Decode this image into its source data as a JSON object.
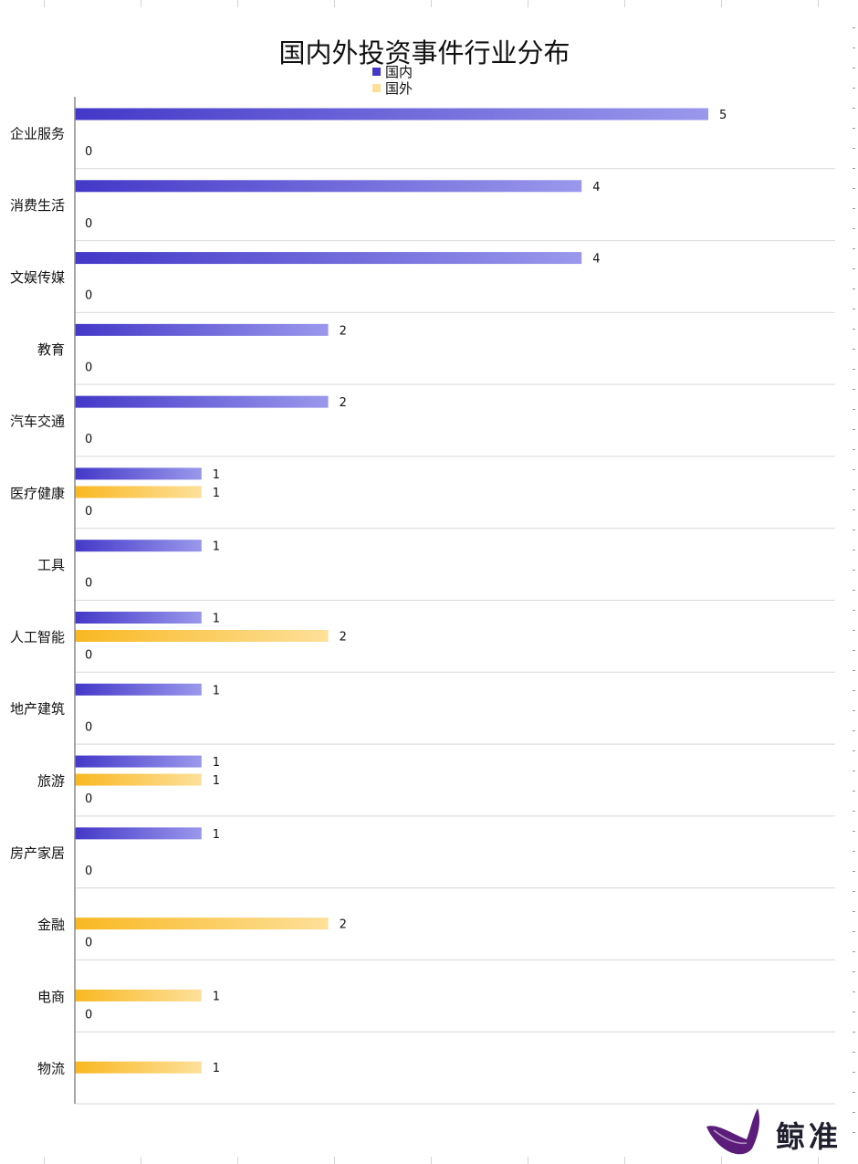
{
  "chart_data": {
    "type": "bar",
    "orientation": "horizontal",
    "title": "国内外投资事件行业分布",
    "categories": [
      "企业服务",
      "消费生活",
      "文娱传媒",
      "教育",
      "汽车交通",
      "医疗健康",
      "工具",
      "人工智能",
      "地产建筑",
      "旅游",
      "房产家居",
      "金融",
      "电商",
      "物流"
    ],
    "series": [
      {
        "name": "国内",
        "values": [
          5,
          4,
          4,
          2,
          2,
          1,
          1,
          1,
          1,
          1,
          1,
          null,
          null,
          null
        ],
        "color": "#4338c8"
      },
      {
        "name": "国外",
        "values": [
          null,
          null,
          null,
          null,
          null,
          1,
          null,
          2,
          null,
          1,
          null,
          2,
          1,
          1
        ],
        "color": "#f9b823"
      },
      {
        "name": "",
        "values": [
          0,
          0,
          0,
          0,
          0,
          0,
          0,
          0,
          0,
          0,
          0,
          0,
          0,
          null
        ],
        "color": "#000000"
      }
    ],
    "xlim": [
      0,
      5
    ],
    "legend": "top-center",
    "grid": "horizontal separators between categories"
  },
  "logo": {
    "text": "鲸准"
  },
  "colors": {
    "domestic_start": "#4338c8",
    "domestic_end": "#9a98ec",
    "foreign_start": "#f9b823",
    "foreign_end": "#fde09a",
    "logo_purple": "#5b1c7a"
  }
}
